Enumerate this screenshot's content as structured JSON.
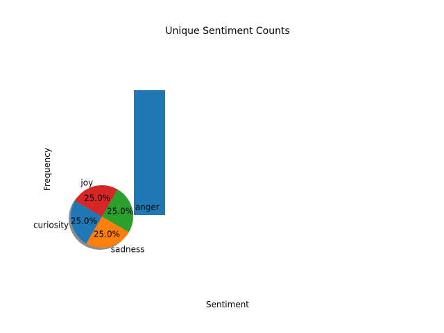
{
  "chart_data": {
    "type": "pie",
    "title": "Unique Sentiment Counts",
    "xlabel": "Sentiment",
    "ylabel": "Frequency",
    "slices": [
      {
        "label": "curiosity",
        "value": 25.0,
        "color": "#1f77b4"
      },
      {
        "label": "sadness",
        "value": 25.0,
        "color": "#ff7f0e"
      },
      {
        "label": "anger",
        "value": 25.0,
        "color": "#2ca02c"
      },
      {
        "label": "joy",
        "value": 25.0,
        "color": "#d62728"
      }
    ],
    "percent_labels": [
      "25.0%",
      "25.0%",
      "25.0%",
      "25.0%"
    ],
    "shadow": true,
    "bar": {
      "value": 1,
      "color": "#1f77b4"
    }
  }
}
